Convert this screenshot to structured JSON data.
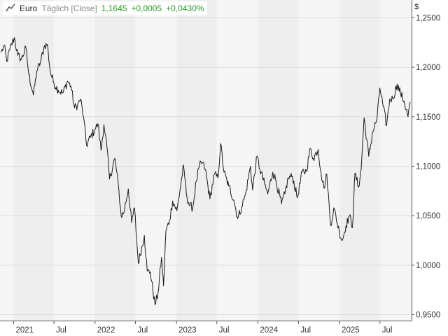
{
  "header": {
    "name": "Euro",
    "mode": "Täglich [Close]",
    "last": "1,1645",
    "change": "+0,0005",
    "change_pct": "+0,0430%",
    "currency": "$"
  },
  "colors": {
    "line": "#1a1a1a",
    "band_light": "#f5f5f5",
    "band_dark": "#eeeeee",
    "grid": "#dcdcdc",
    "axis": "#555555",
    "positive": "#2a9d2a"
  },
  "chart_data": {
    "type": "line",
    "title": "Euro",
    "xlabel": "",
    "ylabel": "$",
    "x_ticks": [
      {
        "date": "2021-01-01",
        "label": "2021"
      },
      {
        "date": "2021-07-01",
        "label": "Jul"
      },
      {
        "date": "2022-01-01",
        "label": "2022"
      },
      {
        "date": "2022-07-01",
        "label": "Jul"
      },
      {
        "date": "2023-01-01",
        "label": "2023"
      },
      {
        "date": "2023-07-01",
        "label": "Jul"
      },
      {
        "date": "2024-01-01",
        "label": "2024"
      },
      {
        "date": "2024-07-01",
        "label": "Jul"
      },
      {
        "date": "2025-01-01",
        "label": "2025"
      },
      {
        "date": "2025-07-01",
        "label": "Jul"
      }
    ],
    "y_ticks": [
      {
        "value": 0.95,
        "label": "0,9500"
      },
      {
        "value": 1.0,
        "label": "1,0000"
      },
      {
        "value": 1.05,
        "label": "1,0500"
      },
      {
        "value": 1.1,
        "label": "1,1000"
      },
      {
        "value": 1.15,
        "label": "1,1500"
      },
      {
        "value": 1.2,
        "label": "1,2000"
      },
      {
        "value": 1.25,
        "label": "1,2500"
      }
    ],
    "xlim": [
      "2020-11-01",
      "2025-11-20"
    ],
    "ylim": [
      0.944,
      1.268
    ],
    "grid": true,
    "series": [
      {
        "name": "Euro",
        "points": [
          [
            "2020-11-06",
            1.215
          ],
          [
            "2020-11-20",
            1.222
          ],
          [
            "2020-12-01",
            1.206
          ],
          [
            "2020-12-15",
            1.218
          ],
          [
            "2021-01-04",
            1.23
          ],
          [
            "2021-01-20",
            1.212
          ],
          [
            "2021-02-05",
            1.208
          ],
          [
            "2021-02-25",
            1.22
          ],
          [
            "2021-03-10",
            1.193
          ],
          [
            "2021-03-31",
            1.172
          ],
          [
            "2021-04-15",
            1.196
          ],
          [
            "2021-05-01",
            1.205
          ],
          [
            "2021-05-20",
            1.222
          ],
          [
            "2021-06-01",
            1.223
          ],
          [
            "2021-06-15",
            1.195
          ],
          [
            "2021-07-01",
            1.184
          ],
          [
            "2021-07-20",
            1.177
          ],
          [
            "2021-08-10",
            1.174
          ],
          [
            "2021-08-31",
            1.186
          ],
          [
            "2021-09-15",
            1.181
          ],
          [
            "2021-10-01",
            1.159
          ],
          [
            "2021-10-15",
            1.162
          ],
          [
            "2021-10-28",
            1.168
          ],
          [
            "2021-11-10",
            1.15
          ],
          [
            "2021-11-24",
            1.121
          ],
          [
            "2021-12-10",
            1.129
          ],
          [
            "2021-12-31",
            1.137
          ],
          [
            "2022-01-14",
            1.143
          ],
          [
            "2022-01-28",
            1.116
          ],
          [
            "2022-02-10",
            1.142
          ],
          [
            "2022-02-24",
            1.118
          ],
          [
            "2022-03-07",
            1.087
          ],
          [
            "2022-03-31",
            1.108
          ],
          [
            "2022-04-15",
            1.082
          ],
          [
            "2022-04-28",
            1.05
          ],
          [
            "2022-05-10",
            1.053
          ],
          [
            "2022-05-30",
            1.077
          ],
          [
            "2022-06-14",
            1.043
          ],
          [
            "2022-06-27",
            1.058
          ],
          [
            "2022-07-14",
            1.002
          ],
          [
            "2022-08-10",
            1.03
          ],
          [
            "2022-08-23",
            0.994
          ],
          [
            "2022-09-06",
            0.993
          ],
          [
            "2022-09-27",
            0.96
          ],
          [
            "2022-10-10",
            0.971
          ],
          [
            "2022-10-26",
            1.008
          ],
          [
            "2022-11-04",
            0.979
          ],
          [
            "2022-11-15",
            1.035
          ],
          [
            "2022-12-01",
            1.045
          ],
          [
            "2022-12-15",
            1.065
          ],
          [
            "2023-01-03",
            1.055
          ],
          [
            "2023-01-26",
            1.09
          ],
          [
            "2023-02-02",
            1.1
          ],
          [
            "2023-02-17",
            1.069
          ],
          [
            "2023-03-01",
            1.06
          ],
          [
            "2023-03-15",
            1.058
          ],
          [
            "2023-03-31",
            1.085
          ],
          [
            "2023-04-14",
            1.1
          ],
          [
            "2023-04-26",
            1.104
          ],
          [
            "2023-05-10",
            1.097
          ],
          [
            "2023-05-31",
            1.067
          ],
          [
            "2023-06-20",
            1.092
          ],
          [
            "2023-07-06",
            1.088
          ],
          [
            "2023-07-18",
            1.123
          ],
          [
            "2023-08-02",
            1.094
          ],
          [
            "2023-08-23",
            1.08
          ],
          [
            "2023-09-15",
            1.066
          ],
          [
            "2023-10-03",
            1.047
          ],
          [
            "2023-10-20",
            1.059
          ],
          [
            "2023-11-06",
            1.071
          ],
          [
            "2023-11-29",
            1.1
          ],
          [
            "2023-12-08",
            1.076
          ],
          [
            "2023-12-28",
            1.11
          ],
          [
            "2024-01-10",
            1.097
          ],
          [
            "2024-01-31",
            1.082
          ],
          [
            "2024-02-14",
            1.072
          ],
          [
            "2024-03-08",
            1.094
          ],
          [
            "2024-03-20",
            1.087
          ],
          [
            "2024-04-16",
            1.062
          ],
          [
            "2024-05-01",
            1.072
          ],
          [
            "2024-05-16",
            1.088
          ],
          [
            "2024-06-04",
            1.09
          ],
          [
            "2024-06-26",
            1.068
          ],
          [
            "2024-07-17",
            1.094
          ],
          [
            "2024-08-05",
            1.095
          ],
          [
            "2024-08-23",
            1.118
          ],
          [
            "2024-09-06",
            1.108
          ],
          [
            "2024-09-27",
            1.117
          ],
          [
            "2024-10-10",
            1.094
          ],
          [
            "2024-10-23",
            1.078
          ],
          [
            "2024-11-05",
            1.092
          ],
          [
            "2024-11-22",
            1.04
          ],
          [
            "2024-12-06",
            1.058
          ],
          [
            "2024-12-31",
            1.034
          ],
          [
            "2025-01-13",
            1.025
          ],
          [
            "2025-01-30",
            1.04
          ],
          [
            "2025-02-14",
            1.05
          ],
          [
            "2025-02-28",
            1.038
          ],
          [
            "2025-03-11",
            1.093
          ],
          [
            "2025-03-27",
            1.079
          ],
          [
            "2025-04-08",
            1.097
          ],
          [
            "2025-04-21",
            1.149
          ],
          [
            "2025-05-12",
            1.11
          ],
          [
            "2025-05-30",
            1.135
          ],
          [
            "2025-06-18",
            1.148
          ],
          [
            "2025-07-01",
            1.179
          ],
          [
            "2025-07-16",
            1.16
          ],
          [
            "2025-07-31",
            1.141
          ],
          [
            "2025-08-14",
            1.168
          ],
          [
            "2025-08-28",
            1.168
          ],
          [
            "2025-09-16",
            1.183
          ],
          [
            "2025-10-01",
            1.174
          ],
          [
            "2025-10-17",
            1.166
          ],
          [
            "2025-11-04",
            1.15
          ],
          [
            "2025-11-14",
            1.165
          ]
        ]
      }
    ]
  }
}
